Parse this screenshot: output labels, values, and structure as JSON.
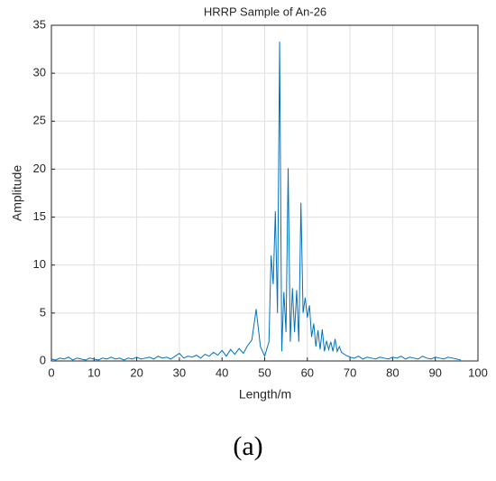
{
  "chart_data": {
    "type": "line",
    "title": "HRRP Sample of An-26",
    "xlabel": "Length/m",
    "ylabel": "Amplitude",
    "caption": "(a)",
    "xlim": [
      0,
      100
    ],
    "xticks": [
      0,
      10,
      20,
      30,
      40,
      50,
      60,
      70,
      80,
      90,
      100
    ],
    "ylim": [
      0,
      35
    ],
    "yticks": [
      0,
      5,
      10,
      15,
      20,
      25,
      30,
      35
    ],
    "grid": true,
    "series": [
      {
        "color": "#0072bd",
        "x": [
          0,
          1,
          2,
          3,
          4,
          5,
          6,
          7,
          8,
          9,
          10,
          11,
          12,
          13,
          14,
          15,
          16,
          17,
          18,
          19,
          20,
          21,
          22,
          23,
          24,
          25,
          26,
          27,
          28,
          29,
          30,
          31,
          32,
          33,
          34,
          35,
          36,
          37,
          38,
          39,
          40,
          41,
          42,
          43,
          44,
          45,
          46,
          47,
          48,
          49,
          50,
          51,
          51.5,
          52,
          52.5,
          53,
          53.5,
          54,
          54.5,
          55,
          55.5,
          56,
          56.5,
          57,
          57.5,
          58,
          58.5,
          59,
          59.5,
          60,
          60.5,
          61,
          61.5,
          62,
          62.5,
          63,
          63.5,
          64,
          64.5,
          65,
          65.5,
          66,
          66.5,
          67,
          67.5,
          68,
          69,
          70,
          71,
          72,
          73,
          74,
          75,
          76,
          77,
          78,
          79,
          80,
          81,
          82,
          83,
          84,
          85,
          86,
          87,
          88,
          89,
          90,
          91,
          92,
          93,
          94,
          95,
          96
        ],
        "values": [
          0.2,
          0.1,
          0.3,
          0.2,
          0.4,
          0.1,
          0.3,
          0.2,
          0.1,
          0.3,
          0.2,
          0.1,
          0.3,
          0.2,
          0.4,
          0.2,
          0.3,
          0.1,
          0.3,
          0.2,
          0.4,
          0.2,
          0.3,
          0.4,
          0.2,
          0.5,
          0.3,
          0.4,
          0.2,
          0.5,
          0.8,
          0.3,
          0.5,
          0.4,
          0.6,
          0.3,
          0.7,
          0.5,
          0.9,
          0.6,
          1.1,
          0.5,
          1.2,
          0.7,
          1.3,
          0.8,
          1.6,
          2.2,
          5.4,
          1.5,
          0.5,
          2.0,
          11,
          8,
          15.6,
          5,
          33.3,
          1,
          7.2,
          3,
          20.1,
          2,
          7.6,
          3,
          7.4,
          2,
          16.5,
          5,
          6.6,
          4.5,
          5.8,
          2.5,
          3.9,
          1.5,
          3.2,
          1.2,
          3.3,
          1.0,
          2.1,
          1.2,
          2.0,
          1.0,
          2.3,
          1.0,
          1.5,
          0.9,
          0.6,
          0.4,
          0.3,
          0.5,
          0.2,
          0.4,
          0.3,
          0.2,
          0.4,
          0.3,
          0.2,
          0.4,
          0.3,
          0.5,
          0.2,
          0.4,
          0.3,
          0.2,
          0.5,
          0.3,
          0.2,
          0.4,
          0.3,
          0.2,
          0.4,
          0.3,
          0.2,
          0.1
        ]
      }
    ]
  }
}
